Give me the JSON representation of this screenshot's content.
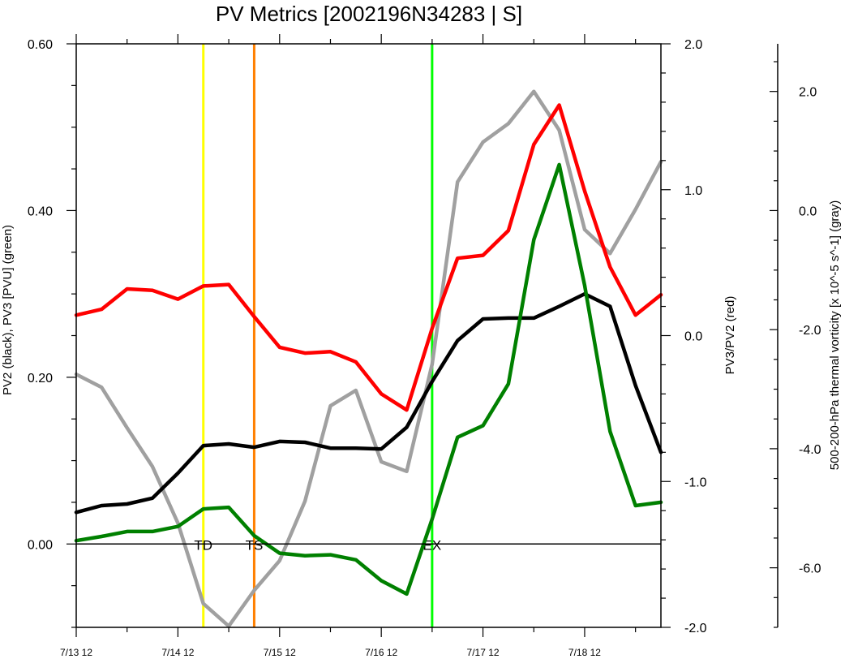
{
  "chart_data": {
    "type": "line",
    "title": "PV Metrics [2002196N34283 | S]",
    "x": {
      "ticks": [
        {
          "value": 0,
          "label": "7/13 12"
        },
        {
          "value": 1,
          "label": "7/14 12"
        },
        {
          "value": 2,
          "label": "7/15 12"
        },
        {
          "value": 3,
          "label": "7/16 12"
        },
        {
          "value": 4,
          "label": "7/17 12"
        },
        {
          "value": 5,
          "label": "7/18 12"
        }
      ],
      "range_days": [
        0,
        5.75
      ],
      "step_days": 0.25
    },
    "left_axis": {
      "label": "PV2 (black), PV3 [PVU] (green)",
      "range": [
        -0.1,
        0.6
      ],
      "major_ticks": [
        {
          "value": 0.0,
          "label": "0.00"
        },
        {
          "value": 0.2,
          "label": "0.20"
        },
        {
          "value": 0.4,
          "label": "0.40"
        },
        {
          "value": 0.6,
          "label": "0.60"
        }
      ]
    },
    "right_axis": {
      "label": "PV3/PV2 (red)",
      "range": [
        -2.0,
        2.0
      ],
      "major_ticks": [
        {
          "value": -2.0,
          "label": "-2.0"
        },
        {
          "value": -1.0,
          "label": "-1.0"
        },
        {
          "value": 0.0,
          "label": "0.0"
        },
        {
          "value": 1.0,
          "label": "1.0"
        },
        {
          "value": 2.0,
          "label": "2.0"
        }
      ]
    },
    "far_right_axis": {
      "label": "500-200-hPa thermal vorticity [x 10^-5 s^-1] (gray)",
      "range": [
        -7.0,
        2.8
      ],
      "major_ticks": [
        {
          "value": -6.0,
          "label": "-6.0"
        },
        {
          "value": -4.0,
          "label": "-4.0"
        },
        {
          "value": -2.0,
          "label": "-2.0"
        },
        {
          "value": 0.0,
          "label": "0.0"
        },
        {
          "value": 2.0,
          "label": "2.0"
        }
      ]
    },
    "series": [
      {
        "name": "PV2",
        "axis": "left",
        "color": "#000000",
        "values": [
          0.038,
          0.046,
          0.048,
          0.055,
          0.085,
          0.118,
          0.12,
          0.116,
          0.123,
          0.122,
          0.115,
          0.115,
          0.114,
          0.14,
          0.195,
          0.244,
          0.27,
          0.271,
          0.271,
          0.285,
          0.3,
          0.285,
          0.19,
          0.11
        ]
      },
      {
        "name": "PV3",
        "axis": "left",
        "color": "#008000",
        "values": [
          0.004,
          0.009,
          0.015,
          0.015,
          0.021,
          0.042,
          0.044,
          0.01,
          -0.011,
          -0.014,
          -0.013,
          -0.019,
          -0.044,
          -0.06,
          0.03,
          0.128,
          0.142,
          0.192,
          0.365,
          0.455,
          0.31,
          0.135,
          0.046,
          0.05
        ]
      },
      {
        "name": "PV3/PV2",
        "axis": "right",
        "color": "#ff0000",
        "values": [
          0.14,
          0.18,
          0.32,
          0.31,
          0.25,
          0.34,
          0.35,
          0.13,
          -0.08,
          -0.12,
          -0.11,
          -0.18,
          -0.4,
          -0.51,
          0.05,
          0.53,
          0.55,
          0.72,
          1.31,
          1.58,
          0.99,
          0.47,
          0.14,
          0.28
        ]
      },
      {
        "name": "thermal vorticity",
        "axis": "far_right",
        "color": "#a0a0a0",
        "values": [
          -2.75,
          -2.97,
          -3.65,
          -4.3,
          -5.25,
          -6.6,
          -6.98,
          -6.38,
          -5.88,
          -4.88,
          -3.28,
          -3.02,
          -4.22,
          -4.38,
          -2.58,
          0.48,
          1.15,
          1.46,
          2.0,
          1.35,
          -0.32,
          -0.72,
          0.02,
          0.82
        ]
      }
    ],
    "zero_line": {
      "axis": "left",
      "value": 0.0
    },
    "events": [
      {
        "label": "TD",
        "x": 1.25,
        "color": "#ffff00"
      },
      {
        "label": "TS",
        "x": 1.75,
        "color": "#ff8000"
      },
      {
        "label": "EX",
        "x": 3.5,
        "color": "#00ff00"
      }
    ],
    "grid": false
  }
}
